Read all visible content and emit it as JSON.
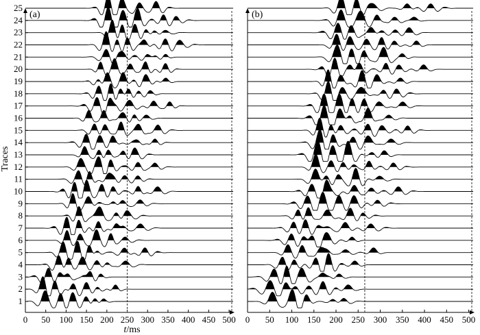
{
  "chart_data": [
    {
      "type": "wiggle",
      "panel_label": "(a)",
      "ylabel": "Traces",
      "xlabel_italic": "t",
      "xlabel_unit": "/ms",
      "x_ticks": [
        0,
        50,
        100,
        150,
        200,
        250,
        300,
        350,
        400,
        450,
        500
      ],
      "y_ticks": [
        1,
        2,
        3,
        4,
        5,
        6,
        7,
        8,
        9,
        10,
        11,
        12,
        13,
        14,
        15,
        16,
        17,
        18,
        19,
        20,
        21,
        22,
        23,
        24,
        25
      ],
      "xlim": [
        0,
        510
      ],
      "marker_time_ms": 250,
      "trace_count": 25,
      "first_arrival_ms": [
        45,
        40,
        55,
        80,
        90,
        100,
        100,
        130,
        115,
        120,
        130,
        135,
        145,
        150,
        165,
        150,
        170,
        175,
        175,
        180,
        195,
        195,
        210,
        200,
        200
      ]
    },
    {
      "type": "wiggle",
      "panel_label": "(b)",
      "x_ticks": [
        0,
        50,
        100,
        150,
        200,
        250,
        300,
        350,
        400,
        450,
        500
      ],
      "xlim": [
        0,
        510
      ],
      "marker_time_ms": 265,
      "trace_count": 25,
      "first_arrival_ms": [
        55,
        50,
        60,
        80,
        85,
        95,
        100,
        110,
        130,
        140,
        150,
        150,
        155,
        160,
        160,
        170,
        170,
        180,
        180,
        195,
        200,
        200,
        205,
        210,
        210
      ]
    }
  ]
}
